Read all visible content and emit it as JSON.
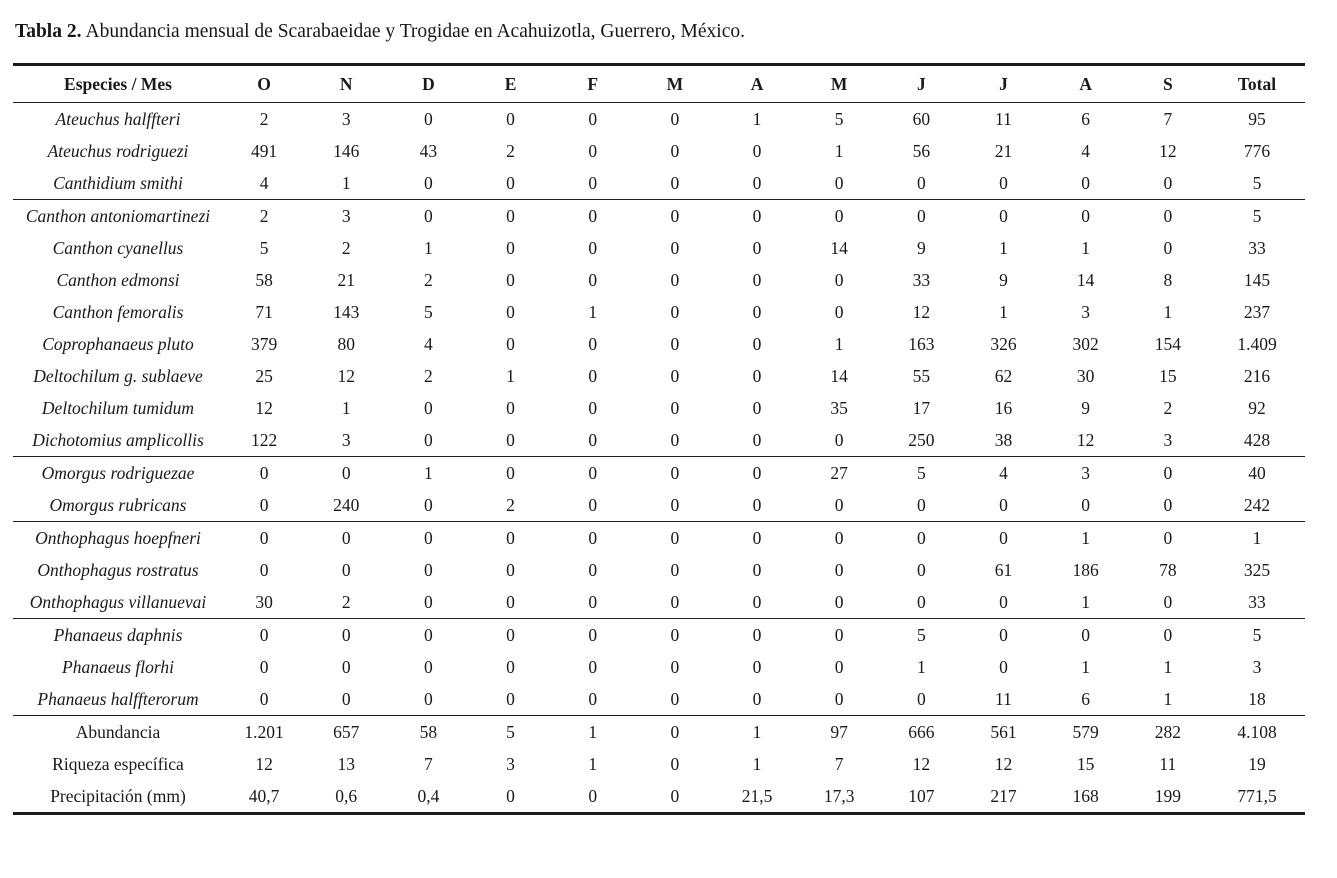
{
  "caption": {
    "label": "Tabla 2.",
    "text": "Abundancia mensual de Scarabaeidae y Trogidae en Acahuizotla, Guerrero, México."
  },
  "table": {
    "header": [
      "Especies / Mes",
      "O",
      "N",
      "D",
      "E",
      "F",
      "M",
      "A",
      "M",
      "J",
      "J",
      "A",
      "S",
      "Total"
    ],
    "sections": [
      {
        "rows": [
          {
            "species": "Ateuchus halffteri",
            "kind": "species",
            "values": [
              "2",
              "3",
              "0",
              "0",
              "0",
              "0",
              "1",
              "5",
              "60",
              "11",
              "6",
              "7",
              "95"
            ]
          },
          {
            "species": "Ateuchus rodriguezi",
            "kind": "species",
            "values": [
              "491",
              "146",
              "43",
              "2",
              "0",
              "0",
              "0",
              "1",
              "56",
              "21",
              "4",
              "12",
              "776"
            ]
          },
          {
            "species": "Canthidium smithi",
            "kind": "species",
            "values": [
              "4",
              "1",
              "0",
              "0",
              "0",
              "0",
              "0",
              "0",
              "0",
              "0",
              "0",
              "0",
              "5"
            ]
          }
        ]
      },
      {
        "rows": [
          {
            "species": "Canthon antoniomartinezi",
            "kind": "species",
            "values": [
              "2",
              "3",
              "0",
              "0",
              "0",
              "0",
              "0",
              "0",
              "0",
              "0",
              "0",
              "0",
              "5"
            ]
          },
          {
            "species": "Canthon cyanellus",
            "kind": "species",
            "values": [
              "5",
              "2",
              "1",
              "0",
              "0",
              "0",
              "0",
              "14",
              "9",
              "1",
              "1",
              "0",
              "33"
            ]
          },
          {
            "species": "Canthon edmonsi",
            "kind": "species",
            "values": [
              "58",
              "21",
              "2",
              "0",
              "0",
              "0",
              "0",
              "0",
              "33",
              "9",
              "14",
              "8",
              "145"
            ]
          },
          {
            "species": "Canthon femoralis",
            "kind": "species",
            "values": [
              "71",
              "143",
              "5",
              "0",
              "1",
              "0",
              "0",
              "0",
              "12",
              "1",
              "3",
              "1",
              "237"
            ]
          },
          {
            "species": "Coprophanaeus pluto",
            "kind": "species",
            "values": [
              "379",
              "80",
              "4",
              "0",
              "0",
              "0",
              "0",
              "1",
              "163",
              "326",
              "302",
              "154",
              "1.409"
            ]
          },
          {
            "species": "Deltochilum g. sublaeve",
            "kind": "species",
            "values": [
              "25",
              "12",
              "2",
              "1",
              "0",
              "0",
              "0",
              "14",
              "55",
              "62",
              "30",
              "15",
              "216"
            ]
          },
          {
            "species": "Deltochilum tumidum",
            "kind": "species",
            "values": [
              "12",
              "1",
              "0",
              "0",
              "0",
              "0",
              "0",
              "35",
              "17",
              "16",
              "9",
              "2",
              "92"
            ]
          },
          {
            "species": "Dichotomius amplicollis",
            "kind": "species",
            "values": [
              "122",
              "3",
              "0",
              "0",
              "0",
              "0",
              "0",
              "0",
              "250",
              "38",
              "12",
              "3",
              "428"
            ]
          }
        ]
      },
      {
        "rows": [
          {
            "species": "Omorgus rodriguezae",
            "kind": "species",
            "values": [
              "0",
              "0",
              "1",
              "0",
              "0",
              "0",
              "0",
              "27",
              "5",
              "4",
              "3",
              "0",
              "40"
            ]
          },
          {
            "species": "Omorgus rubricans",
            "kind": "species",
            "values": [
              "0",
              "240",
              "0",
              "2",
              "0",
              "0",
              "0",
              "0",
              "0",
              "0",
              "0",
              "0",
              "242"
            ]
          }
        ]
      },
      {
        "rows": [
          {
            "species": "Onthophagus hoepfneri",
            "kind": "species",
            "values": [
              "0",
              "0",
              "0",
              "0",
              "0",
              "0",
              "0",
              "0",
              "0",
              "0",
              "1",
              "0",
              "1"
            ]
          },
          {
            "species": "Onthophagus rostratus",
            "kind": "species",
            "values": [
              "0",
              "0",
              "0",
              "0",
              "0",
              "0",
              "0",
              "0",
              "0",
              "61",
              "186",
              "78",
              "325"
            ]
          },
          {
            "species": "Onthophagus villanuevai",
            "kind": "species",
            "values": [
              "30",
              "2",
              "0",
              "0",
              "0",
              "0",
              "0",
              "0",
              "0",
              "0",
              "1",
              "0",
              "33"
            ]
          }
        ]
      },
      {
        "rows": [
          {
            "species": "Phanaeus daphnis",
            "kind": "species",
            "values": [
              "0",
              "0",
              "0",
              "0",
              "0",
              "0",
              "0",
              "0",
              "5",
              "0",
              "0",
              "0",
              "5"
            ]
          },
          {
            "species": "Phanaeus florhi",
            "kind": "species",
            "values": [
              "0",
              "0",
              "0",
              "0",
              "0",
              "0",
              "0",
              "0",
              "1",
              "0",
              "1",
              "1",
              "3"
            ]
          },
          {
            "species": "Phanaeus halffterorum",
            "kind": "species",
            "values": [
              "0",
              "0",
              "0",
              "0",
              "0",
              "0",
              "0",
              "0",
              "0",
              "11",
              "6",
              "1",
              "18"
            ]
          }
        ]
      },
      {
        "rows": [
          {
            "species": "Abundancia",
            "kind": "summary",
            "values": [
              "1.201",
              "657",
              "58",
              "5",
              "1",
              "0",
              "1",
              "97",
              "666",
              "561",
              "579",
              "282",
              "4.108"
            ]
          },
          {
            "species": "Riqueza específica",
            "kind": "summary",
            "values": [
              "12",
              "13",
              "7",
              "3",
              "1",
              "0",
              "1",
              "7",
              "12",
              "12",
              "15",
              "11",
              "19"
            ]
          },
          {
            "species": "Precipitación (mm)",
            "kind": "summary",
            "values": [
              "40,7",
              "0,6",
              "0,4",
              "0",
              "0",
              "0",
              "21,5",
              "17,3",
              "107",
              "217",
              "168",
              "199",
              "771,5"
            ]
          }
        ]
      }
    ]
  }
}
